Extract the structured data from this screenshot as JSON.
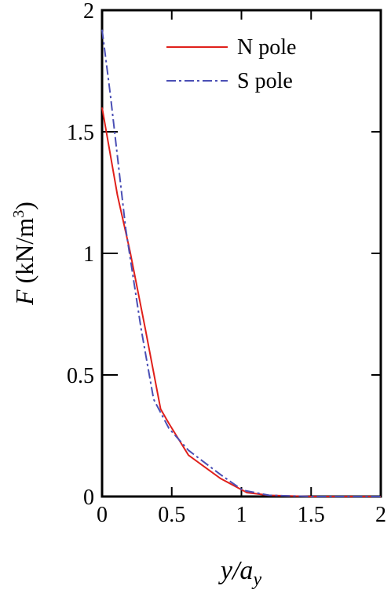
{
  "chart_data": {
    "type": "line",
    "xlabel": [
      "y",
      "/a",
      "y"
    ],
    "ylabel": [
      "F",
      " (kN/m",
      "3",
      ")"
    ],
    "xlim": [
      0,
      2
    ],
    "xticks": [
      0,
      0.5,
      1,
      1.5,
      2
    ],
    "ylim": [
      0,
      2
    ],
    "yticks": [
      0,
      0.5,
      1,
      1.5,
      2
    ],
    "legend": "upper right",
    "series": [
      {
        "name": "N pole",
        "color": "#e0201b",
        "dash": "solid",
        "x": [
          0,
          0.11,
          0.2,
          0.31,
          0.42,
          0.48,
          0.62,
          0.85,
          1.04,
          1.2,
          1.5,
          2
        ],
        "values": [
          1.6,
          1.24,
          1.01,
          0.69,
          0.36,
          0.3,
          0.17,
          0.074,
          0.016,
          0.005,
          0,
          0
        ]
      },
      {
        "name": "S pole",
        "color": "#4a4fb5",
        "dash": "dashdot",
        "x": [
          0,
          0.06,
          0.11,
          0.17,
          0.28,
          0.37,
          0.48,
          0.62,
          0.85,
          1.01,
          1.2,
          1.5,
          2
        ],
        "values": [
          1.92,
          1.65,
          1.4,
          1.1,
          0.69,
          0.4,
          0.28,
          0.19,
          0.09,
          0.026,
          0.005,
          0,
          0
        ]
      }
    ]
  }
}
